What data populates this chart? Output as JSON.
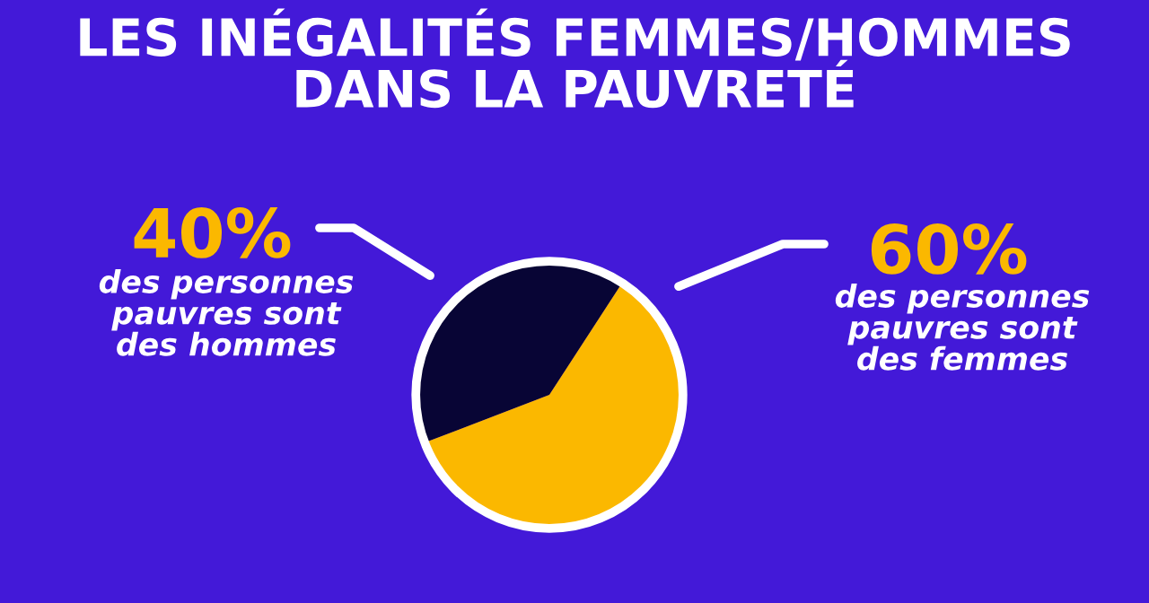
{
  "chart_data": {
    "type": "pie",
    "title": "LES INÉGALITÉS FEMMES/HOMMES\nDANS LA PAUVRETÉ",
    "categories": [
      "des personnes\npauvres sont\ndes hommes",
      "des personnes\npauvres sont\ndes femmes"
    ],
    "values": [
      40,
      60
    ],
    "value_labels": [
      "40%",
      "60%"
    ],
    "colors": [
      "#080535",
      "#fbb800"
    ]
  }
}
